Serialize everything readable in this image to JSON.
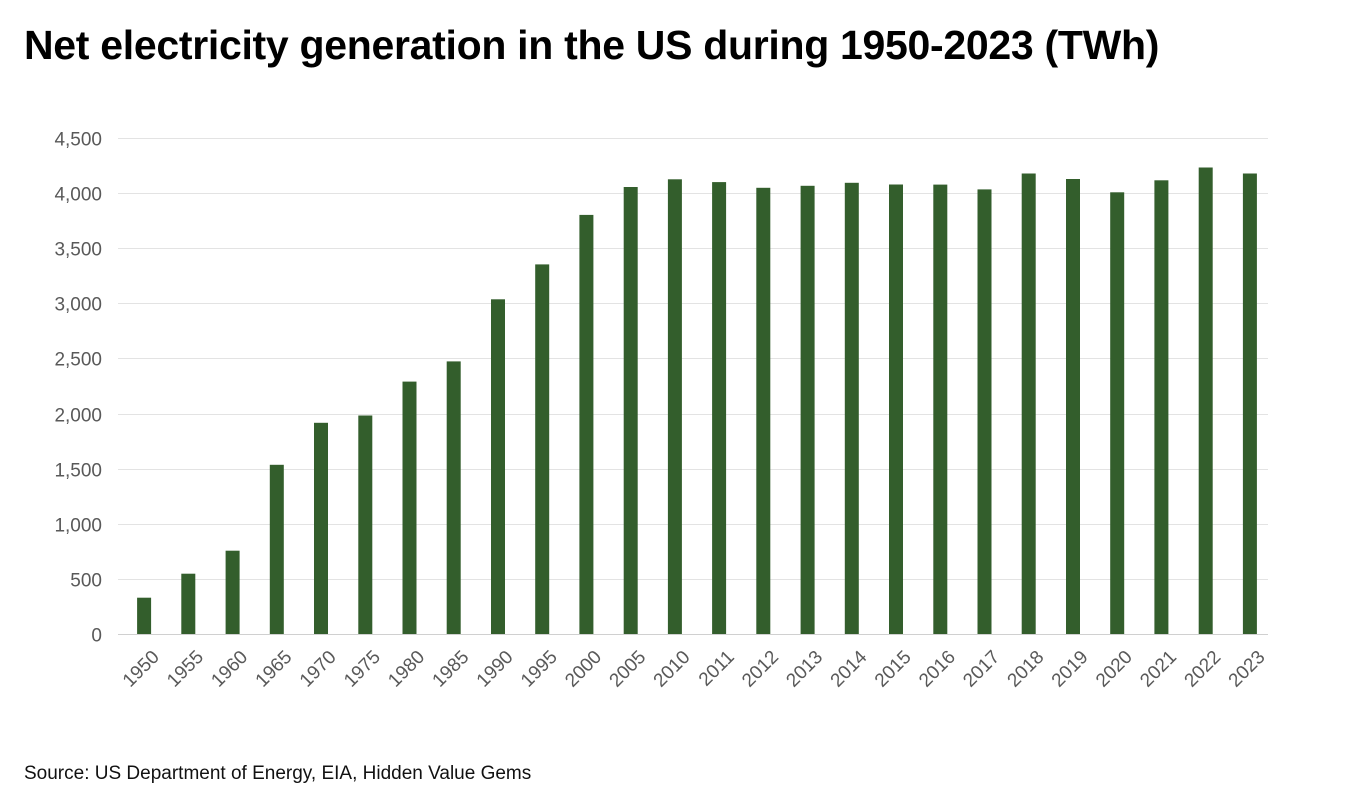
{
  "chart_data": {
    "type": "bar",
    "title": "Net electricity generation in the US during 1950-2023 (TWh)",
    "xlabel": "",
    "ylabel": "",
    "ylim": [
      0,
      4500
    ],
    "yticks": [
      0,
      500,
      1000,
      1500,
      2000,
      2500,
      3000,
      3500,
      4000,
      4500
    ],
    "ytick_labels": [
      "0",
      "500",
      "1,000",
      "1,500",
      "2,000",
      "2,500",
      "3,000",
      "3,500",
      "4,000",
      "4,500"
    ],
    "grid": true,
    "legend": "none",
    "categories": [
      "1950",
      "1955",
      "1960",
      "1965",
      "1970",
      "1975",
      "1980",
      "1985",
      "1990",
      "1995",
      "2000",
      "2005",
      "2010",
      "2011",
      "2012",
      "2013",
      "2014",
      "2015",
      "2016",
      "2017",
      "2018",
      "2019",
      "2020",
      "2021",
      "2022",
      "2023"
    ],
    "series": [
      {
        "name": "Net electricity generation (TWh)",
        "color": "#335e2c",
        "values": [
          329,
          547,
          756,
          1535,
          1916,
          1982,
          2290,
          2473,
          3037,
          3353,
          3802,
          4055,
          4125,
          4100,
          4048,
          4066,
          4094,
          4078,
          4077,
          4034,
          4178,
          4128,
          4007,
          4116,
          4232,
          4178
        ]
      }
    ],
    "source": "Source: US Department of Energy, EIA, Hidden Value Gems"
  }
}
